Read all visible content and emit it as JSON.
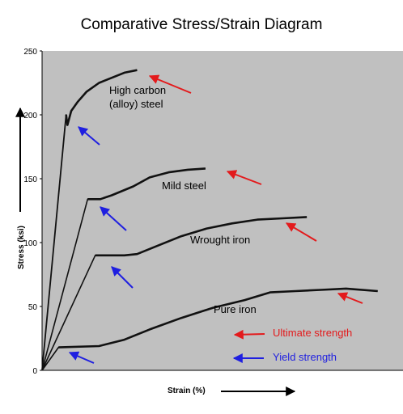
{
  "chart_data": {
    "type": "line",
    "title": "Comparative Stress/Strain Diagram",
    "xlabel": "Strain (%)",
    "ylabel": "Stress (ksi)",
    "ylim": [
      0,
      250
    ],
    "yticks": [
      0,
      50,
      100,
      150,
      200,
      250
    ],
    "grid": false,
    "series": [
      {
        "name": "High carbon (alloy) steel",
        "x": [
          0,
          0.19,
          0.2,
          0.23,
          0.28,
          0.35,
          0.45,
          0.55,
          0.65,
          0.75
        ],
        "y": [
          0,
          200,
          192,
          203,
          210,
          218,
          225,
          229,
          233,
          235
        ]
      },
      {
        "name": "Mild steel",
        "x": [
          0,
          0.36,
          0.46,
          0.55,
          0.72,
          0.85,
          1.0,
          1.15,
          1.29
        ],
        "y": [
          0,
          134,
          134,
          137,
          144,
          151,
          155,
          157,
          158
        ]
      },
      {
        "name": "Wrought iron",
        "x": [
          0,
          0.42,
          0.65,
          0.75,
          0.9,
          1.1,
          1.3,
          1.5,
          1.7,
          1.9,
          2.09
        ],
        "y": [
          0,
          90,
          90,
          91,
          97,
          105,
          111,
          115,
          118,
          119,
          120
        ]
      },
      {
        "name": "Pure iron",
        "x": [
          0,
          0.13,
          0.45,
          0.65,
          0.85,
          1.1,
          1.35,
          1.6,
          1.8,
          2.0,
          2.2,
          2.4,
          2.65
        ],
        "y": [
          0,
          18,
          19,
          24,
          32,
          41,
          49,
          55,
          61,
          62,
          63,
          64,
          62
        ]
      }
    ],
    "legend": [
      {
        "label": "Ultimate strength",
        "color": "#e31a1c"
      },
      {
        "label": "Yield strength",
        "color": "#1f1fe0"
      }
    ],
    "colors": {
      "plot_background": "#c0c0c0",
      "curve": "#111111",
      "ultimate_arrow": "#e31a1c",
      "yield_arrow": "#1f1fe0"
    }
  }
}
